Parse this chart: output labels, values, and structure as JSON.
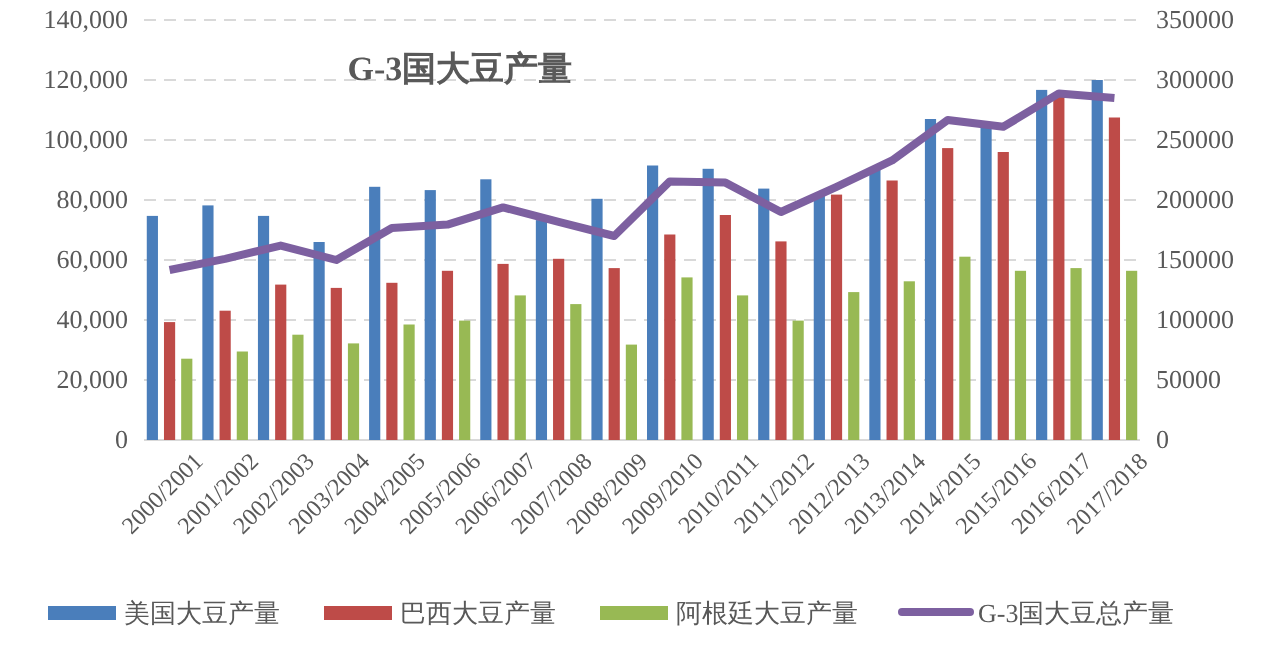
{
  "chart_data": {
    "type": "bar",
    "title": "G-3国大豆产量",
    "categories": [
      "2000/2001",
      "2001/2002",
      "2002/2003",
      "2003/2004",
      "2004/2005",
      "2005/2006",
      "2006/2007",
      "2007/2008",
      "2008/2009",
      "2009/2010",
      "2010/2011",
      "2011/2012",
      "2012/2013",
      "2013/2014",
      "2014/2015",
      "2015/2016",
      "2016/2017",
      "2017/2018"
    ],
    "series": [
      {
        "name": "美国大豆产量",
        "color": "#4a7ebb",
        "values": [
          74700,
          78200,
          74700,
          66000,
          84400,
          83300,
          86900,
          73300,
          80400,
          91500,
          90400,
          83800,
          82200,
          91000,
          107000,
          106000,
          116700,
          120000
        ]
      },
      {
        "name": "巴西大豆产量",
        "color": "#be4b48",
        "values": [
          39300,
          43100,
          51800,
          50700,
          52400,
          56400,
          58700,
          60400,
          57300,
          68500,
          75000,
          66200,
          81800,
          86500,
          97300,
          96000,
          115500,
          107500
        ]
      },
      {
        "name": "阿根廷大豆产量",
        "color": "#98b954",
        "values": [
          27100,
          29500,
          35100,
          32200,
          38500,
          39800,
          48200,
          45300,
          31800,
          54200,
          48200,
          39800,
          49300,
          52900,
          61100,
          56400,
          57300,
          56400
        ]
      },
      {
        "name": "G-3国大豆总产量",
        "color": "#7d60a0",
        "type": "line",
        "axis": "y2",
        "values": [
          141700,
          151000,
          162000,
          150000,
          176700,
          179500,
          193800,
          181700,
          170000,
          215500,
          214500,
          190000,
          211000,
          233000,
          266700,
          261000,
          288800,
          285000
        ]
      }
    ],
    "ylim": [
      0,
      140000
    ],
    "yticks": [
      {
        "value": 0,
        "label": "0"
      },
      {
        "value": 20000,
        "label": "20,000"
      },
      {
        "value": 40000,
        "label": "40,000"
      },
      {
        "value": 60000,
        "label": "60,000"
      },
      {
        "value": 80000,
        "label": "80,000"
      },
      {
        "value": 100000,
        "label": "100,000"
      },
      {
        "value": 120000,
        "label": "120,000"
      },
      {
        "value": 140000,
        "label": "140,000"
      }
    ],
    "y2lim": [
      0,
      350000
    ],
    "y2ticks": [
      0,
      50000,
      100000,
      150000,
      200000,
      250000,
      300000,
      350000
    ],
    "grid": "y",
    "legend": "bottom",
    "marker": "none"
  }
}
